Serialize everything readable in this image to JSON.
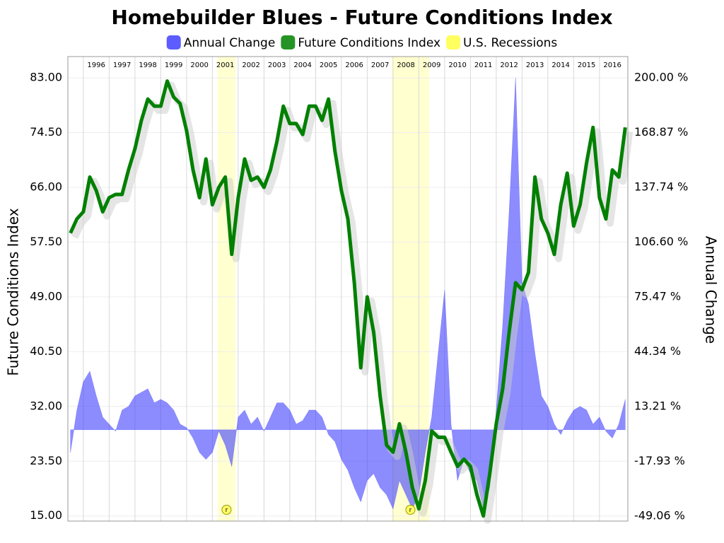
{
  "chart_data": {
    "type": "line",
    "title": "Homebuilder Blues - Future Conditions Index",
    "y_label": "Future Conditions Index",
    "y2_label": "Annual Change",
    "x": [
      1995.5,
      1995.75,
      1996,
      1996.25,
      1996.5,
      1996.75,
      1997,
      1997.25,
      1997.5,
      1997.75,
      1998,
      1998.25,
      1998.5,
      1998.75,
      1999,
      1999.25,
      1999.5,
      1999.75,
      2000,
      2000.25,
      2000.5,
      2000.75,
      2001,
      2001.25,
      2001.5,
      2001.75,
      2002,
      2002.25,
      2002.5,
      2002.75,
      2003,
      2003.25,
      2003.5,
      2003.75,
      2004,
      2004.25,
      2004.5,
      2004.75,
      2005,
      2005.25,
      2005.5,
      2005.75,
      2006,
      2006.25,
      2006.5,
      2006.75,
      2007,
      2007.25,
      2007.5,
      2007.75,
      2008,
      2008.25,
      2008.5,
      2008.75,
      2009,
      2009.25,
      2009.5,
      2009.75,
      2010,
      2010.25,
      2010.5,
      2010.75,
      2011,
      2011.25,
      2011.5,
      2011.75,
      2012,
      2012.25,
      2012.5,
      2012.75,
      2013,
      2013.25,
      2013.5,
      2013.75,
      2014,
      2014.25,
      2014.5,
      2014.75,
      2015,
      2015.25,
      2015.5,
      2015.75,
      2016,
      2016.25,
      2016.5,
      2016.75,
      2017
    ],
    "xlim": [
      1995.4,
      2017.1
    ],
    "xticks": [
      1996,
      1997,
      1998,
      1999,
      2000,
      2001,
      2002,
      2003,
      2004,
      2005,
      2006,
      2007,
      2008,
      2009,
      2010,
      2011,
      2012,
      2013,
      2014,
      2015,
      2016
    ],
    "ylim": [
      14.2,
      86.3
    ],
    "yticks": [
      {
        "value": 15,
        "label": "15.00"
      },
      {
        "value": 23.5,
        "label": "23.50"
      },
      {
        "value": 32,
        "label": "32.00"
      },
      {
        "value": 40.5,
        "label": "40.50"
      },
      {
        "value": 49,
        "label": "49.00"
      },
      {
        "value": 57.5,
        "label": "57.50"
      },
      {
        "value": 66,
        "label": "66.00"
      },
      {
        "value": 74.5,
        "label": "74.50"
      },
      {
        "value": 83,
        "label": "83.00"
      }
    ],
    "y2lim": [
      -51.9,
      212.1
    ],
    "y2ticks": [
      {
        "value": -49.06,
        "label": "-49.06 %"
      },
      {
        "value": -17.93,
        "label": "-17.93 %"
      },
      {
        "value": 13.21,
        "label": "13.21 %"
      },
      {
        "value": 44.34,
        "label": "44.34 %"
      },
      {
        "value": 75.47,
        "label": "75.47 %"
      },
      {
        "value": 106.6,
        "label": "106.60 %"
      },
      {
        "value": 137.74,
        "label": "137.74 %"
      },
      {
        "value": 168.87,
        "label": "168.87 %"
      },
      {
        "value": 200,
        "label": "200.00 %"
      }
    ],
    "grid": true,
    "series": [
      {
        "name": "Annual Change",
        "type": "area",
        "axis": "y2",
        "color": "#4040ff",
        "values": [
          -12.9,
          11.2,
          27.3,
          33.3,
          19.3,
          7.2,
          3.2,
          -0.8,
          11.2,
          13.3,
          19.3,
          21.3,
          23.3,
          15.3,
          17.3,
          15.3,
          11.2,
          3.2,
          1.2,
          -4.8,
          -12.9,
          -16.9,
          -12.9,
          -0.8,
          -8.8,
          -20.9,
          7.2,
          11.2,
          3.2,
          7.2,
          -0.8,
          7.2,
          15.3,
          15.3,
          11.2,
          3.2,
          5.2,
          11.2,
          11.2,
          7.2,
          -2.8,
          -6.8,
          -16.9,
          -22.9,
          -32.9,
          -41,
          -28.9,
          -24.9,
          -32.9,
          -37,
          -45,
          -28.9,
          -37,
          -45,
          -37,
          -12.9,
          7.2,
          43.4,
          79.5,
          3.2,
          -28.9,
          -16.9,
          -24.9,
          -28.9,
          -45,
          -32.9,
          11.2,
          59.5,
          123.7,
          200,
          83.6,
          71.5,
          43.4,
          19.3,
          13.3,
          3.2,
          -2.8,
          5.2,
          11.2,
          13.3,
          11.2,
          3.2,
          7.2,
          -0.8,
          -4.8,
          3.2,
          17.3
        ]
      },
      {
        "name": "Future Conditions Index",
        "type": "line",
        "color": "#008000",
        "values": [
          58.9,
          61.1,
          62.2,
          67.6,
          65.5,
          62.2,
          64.4,
          64.9,
          64.9,
          68.7,
          72,
          76.4,
          79.7,
          78.6,
          78.6,
          82.5,
          80,
          79,
          74.8,
          68.7,
          64.4,
          70.4,
          63.3,
          66,
          67.6,
          55.6,
          64.4,
          70.4,
          67.1,
          67.6,
          66,
          68.7,
          73.1,
          78.6,
          75.9,
          75.9,
          74.2,
          78.6,
          78.6,
          76.4,
          79.7,
          71.6,
          65.5,
          61.1,
          51.2,
          38,
          49,
          43.5,
          33.6,
          26,
          24.9,
          29.3,
          24.9,
          19.4,
          16.1,
          20.5,
          28.2,
          27.2,
          27.2,
          24.9,
          22.7,
          23.8,
          22.7,
          18.3,
          15,
          21.6,
          29.3,
          34.7,
          43.5,
          51.2,
          50.1,
          52.8,
          67.6,
          61.1,
          58.9,
          55.6,
          63.3,
          68.2,
          60,
          63.3,
          69.8,
          75.3,
          64.4,
          61.1,
          68.7,
          67.6,
          75.3
        ]
      }
    ],
    "recessions": {
      "name": "U.S. Recessions",
      "color": "#ffff44",
      "periods": [
        {
          "start": 2001.2,
          "end": 2001.9,
          "label": "r"
        },
        {
          "start": 2007.95,
          "end": 2009.4,
          "label": "r"
        }
      ]
    }
  }
}
